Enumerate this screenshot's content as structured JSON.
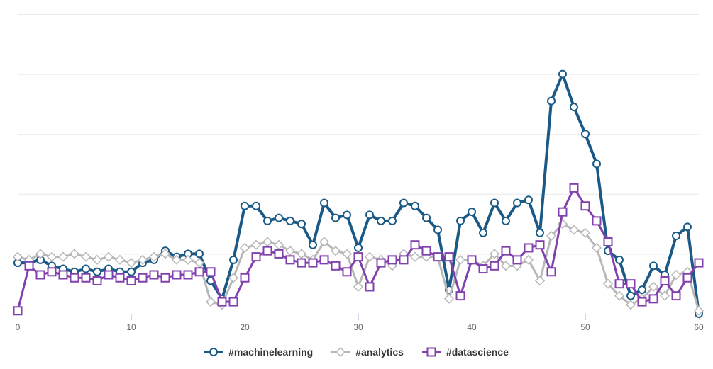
{
  "chart_data": {
    "type": "line",
    "title": "",
    "xlabel": "",
    "ylabel": "",
    "x_start": 0,
    "x_step": 1,
    "xlim": [
      0,
      60
    ],
    "ylim": [
      0,
      100
    ],
    "x_ticks": [
      0,
      10,
      20,
      30,
      40,
      50,
      60
    ],
    "y_gridlines": [
      20,
      40,
      60,
      80,
      100
    ],
    "grid": true,
    "legend_position": "bottom-center",
    "background_color": "#ffffff",
    "gridline_color": "#e8e8e8",
    "axis_line_color": "#ccd6eb",
    "tick_label_color": "#666666",
    "legend_text_color": "#333333",
    "series": [
      {
        "name": "#machinelearning",
        "color": "#1b5a86",
        "marker": "circle",
        "line_width": 4,
        "values": [
          17,
          17,
          18,
          16,
          15,
          14,
          15,
          14,
          15,
          14,
          14,
          17,
          18,
          21,
          19,
          20,
          20,
          11,
          5,
          18,
          36,
          36,
          31,
          32,
          31,
          30,
          23,
          37,
          32,
          33,
          22,
          33,
          31,
          31,
          37,
          36,
          32,
          28,
          8,
          31,
          34,
          27,
          37,
          31,
          37,
          38,
          27,
          71,
          80,
          69,
          60,
          50,
          21,
          18,
          6,
          8,
          16,
          13,
          26,
          29,
          0
        ]
      },
      {
        "name": "#analytics",
        "color": "#b7b7b7",
        "marker": "diamond",
        "line_width": 3,
        "values": [
          19,
          18,
          20,
          19,
          19,
          20,
          19,
          18,
          19,
          18,
          17,
          18,
          19,
          20,
          18,
          18,
          17,
          4,
          3,
          12,
          22,
          23,
          24,
          23,
          21,
          20,
          18,
          24,
          21,
          20,
          9,
          19,
          18,
          16,
          20,
          19,
          19,
          19,
          5,
          18,
          18,
          16,
          20,
          16,
          16,
          18,
          11,
          26,
          30,
          28,
          27,
          22,
          10,
          6,
          3,
          5,
          9,
          6,
          13,
          14,
          1
        ]
      },
      {
        "name": "#datascience",
        "color": "#8040ad",
        "marker": "square",
        "line_width": 3,
        "values": [
          1,
          16,
          13,
          14,
          13,
          12,
          12,
          11,
          13,
          12,
          11,
          12,
          13,
          12,
          13,
          13,
          14,
          14,
          4,
          4,
          12,
          19,
          21,
          20,
          18,
          17,
          17,
          18,
          16,
          14,
          19,
          9,
          17,
          18,
          18,
          23,
          21,
          19,
          19,
          6,
          18,
          15,
          16,
          21,
          18,
          22,
          23,
          14,
          34,
          42,
          36,
          31,
          24,
          10,
          10,
          4,
          5,
          11,
          6,
          12,
          17
        ]
      }
    ]
  }
}
